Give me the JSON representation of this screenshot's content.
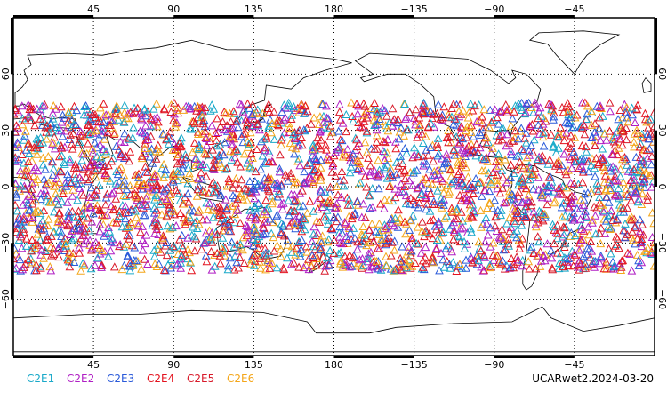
{
  "map": {
    "projection": "cylindrical equidistant",
    "lon_center": 180,
    "lon_range": [
      0,
      360
    ],
    "lat_range": [
      -90,
      90
    ],
    "gridlines": "dotted",
    "top_ticks": [
      "45",
      "90",
      "135",
      "180",
      "−135",
      "−90",
      "−45"
    ],
    "bottom_ticks": [
      "45",
      "90",
      "135",
      "180",
      "−135",
      "−90",
      "−45"
    ],
    "left_ticks": [
      "60",
      "30",
      "0",
      "−30",
      "−60"
    ],
    "right_ticks": [
      "60",
      "30",
      "0",
      "−30",
      "−60"
    ],
    "frame_color": "#000000",
    "coastline_color": "#000000"
  },
  "legend": {
    "items": [
      {
        "label": "C2E1",
        "color": "#19a9c9"
      },
      {
        "label": "C2E2",
        "color": "#b01fc4"
      },
      {
        "label": "C2E3",
        "color": "#2a5ad9"
      },
      {
        "label": "C2E4",
        "color": "#e3121e"
      },
      {
        "label": "C2E5",
        "color": "#d81a2a"
      },
      {
        "label": "C2E6",
        "color": "#f4a61a"
      }
    ]
  },
  "caption": "UCARwet2.2024-03-20",
  "observations": {
    "marker": "open-triangle",
    "lat_band": [
      -45,
      45
    ],
    "density": "very dense, uniform across all longitudes"
  }
}
